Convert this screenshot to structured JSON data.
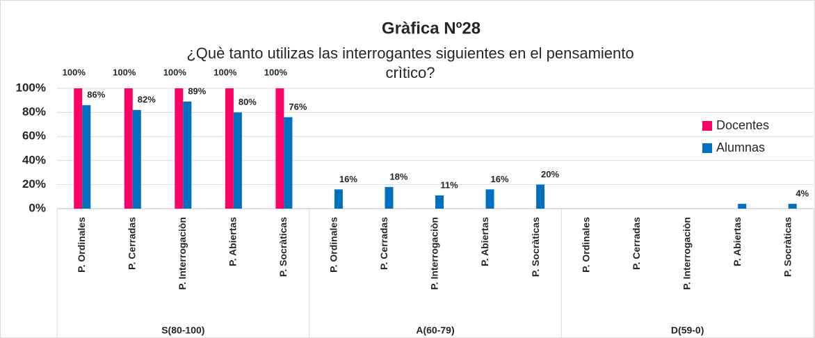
{
  "chart_data": {
    "type": "bar",
    "title": "Gràfica Nº28",
    "subtitle": [
      "¿Què tanto utilizas las interrogantes siguientes en el pensamiento",
      "crìtico?"
    ],
    "categories": [
      "P. Ordinales",
      "P. Cerradas",
      "P. Interrogaciòn",
      "P. Abiertas",
      "P. Socràticas",
      "P. Ordinales",
      "P. Cerradas",
      "P. Interrogaciòn",
      "P. Abiertas",
      "P. Socràticas",
      "P. Ordinales",
      "P. Cerradas",
      "P. Interrogaciòn",
      "P. Abiertas",
      "P. Socràticas"
    ],
    "groups": [
      "S(80-100)",
      "A(60-79)",
      "D(59-0)"
    ],
    "series": [
      {
        "name": "Docentes",
        "color": "#ff0066",
        "values": [
          100,
          100,
          100,
          100,
          100,
          null,
          null,
          null,
          null,
          null,
          null,
          null,
          null,
          null,
          null
        ],
        "value_labels": [
          "100%",
          "100%",
          "100%",
          "100%",
          "100%",
          null,
          null,
          null,
          null,
          null,
          null,
          null,
          null,
          null,
          null
        ]
      },
      {
        "name": "Alumnas",
        "color": "#0070c0",
        "values": [
          86,
          82,
          89,
          80,
          76,
          16,
          18,
          11,
          16,
          20,
          null,
          null,
          null,
          4,
          4
        ],
        "value_labels": [
          "86%",
          "82%",
          "89%",
          "80%",
          "76%",
          "16%",
          "18%",
          "11%",
          "16%",
          "20%",
          null,
          null,
          null,
          null,
          "4%"
        ]
      }
    ],
    "ylim": [
      0,
      100
    ],
    "yticks": [
      {
        "value": 0,
        "label": "0%"
      },
      {
        "value": 20,
        "label": "20%"
      },
      {
        "value": 40,
        "label": "40%"
      },
      {
        "value": 60,
        "label": "60%"
      },
      {
        "value": 80,
        "label": "80%"
      },
      {
        "value": 100,
        "label": "100%"
      }
    ],
    "grid": true,
    "legend": "right"
  }
}
